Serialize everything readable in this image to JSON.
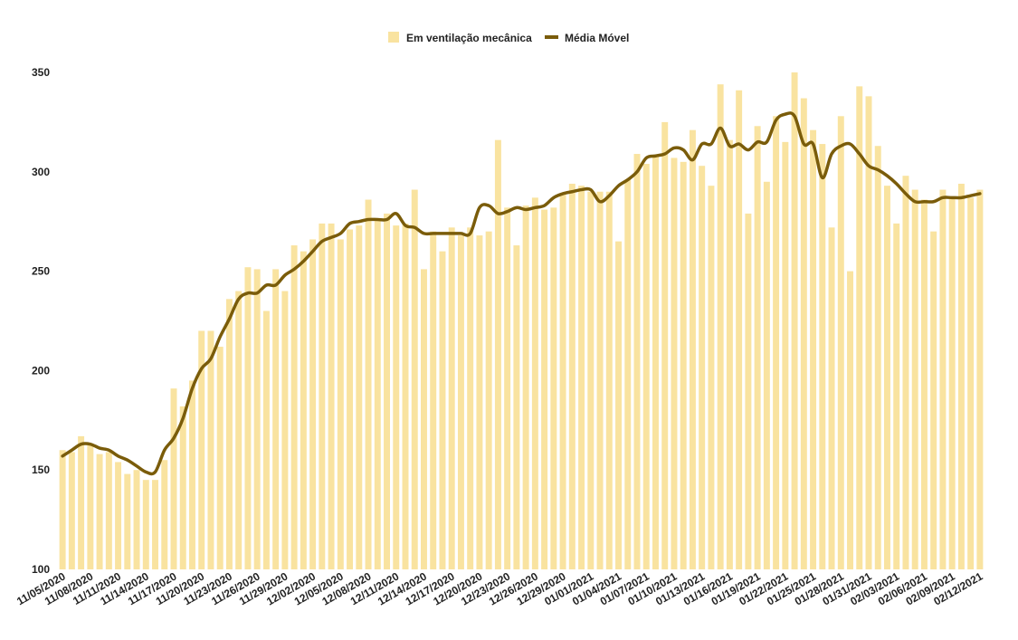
{
  "chart_data": {
    "type": "bar",
    "x": [
      "11/05/2020",
      "11/06/2020",
      "11/07/2020",
      "11/08/2020",
      "11/09/2020",
      "11/10/2020",
      "11/11/2020",
      "11/12/2020",
      "11/13/2020",
      "11/14/2020",
      "11/15/2020",
      "11/16/2020",
      "11/17/2020",
      "11/18/2020",
      "11/19/2020",
      "11/20/2020",
      "11/21/2020",
      "11/22/2020",
      "11/23/2020",
      "11/24/2020",
      "11/25/2020",
      "11/26/2020",
      "11/27/2020",
      "11/28/2020",
      "11/29/2020",
      "11/30/2020",
      "12/01/2020",
      "12/02/2020",
      "12/03/2020",
      "12/04/2020",
      "12/05/2020",
      "12/06/2020",
      "12/07/2020",
      "12/08/2020",
      "12/09/2020",
      "12/10/2020",
      "12/11/2020",
      "12/12/2020",
      "12/13/2020",
      "12/14/2020",
      "12/15/2020",
      "12/16/2020",
      "12/17/2020",
      "12/18/2020",
      "12/19/2020",
      "12/20/2020",
      "12/21/2020",
      "12/22/2020",
      "12/23/2020",
      "12/24/2020",
      "12/25/2020",
      "12/26/2020",
      "12/27/2020",
      "12/28/2020",
      "12/29/2020",
      "12/30/2020",
      "12/31/2020",
      "01/01/2021",
      "01/02/2021",
      "01/03/2021",
      "01/04/2021",
      "01/05/2021",
      "01/06/2021",
      "01/07/2021",
      "01/08/2021",
      "01/09/2021",
      "01/10/2021",
      "01/11/2021",
      "01/12/2021",
      "01/13/2021",
      "01/14/2021",
      "01/15/2021",
      "01/16/2021",
      "01/17/2021",
      "01/18/2021",
      "01/19/2021",
      "01/20/2021",
      "01/21/2021",
      "01/22/2021",
      "01/23/2021",
      "01/24/2021",
      "01/25/2021",
      "01/26/2021",
      "01/27/2021",
      "01/28/2021",
      "01/29/2021",
      "01/30/2021",
      "01/31/2021",
      "02/01/2021",
      "02/02/2021",
      "02/03/2021",
      "02/04/2021",
      "02/05/2021",
      "02/06/2021",
      "02/07/2021",
      "02/08/2021",
      "02/09/2021",
      "02/10/2021",
      "02/11/2021",
      "02/12/2021"
    ],
    "series": [
      {
        "name": "Em ventilação mecânica",
        "kind": "bar",
        "color": "#f9e3a0",
        "values": [
          160,
          159,
          167,
          163,
          158,
          159,
          154,
          148,
          150,
          145,
          145,
          155,
          191,
          182,
          195,
          220,
          220,
          212,
          236,
          240,
          252,
          251,
          230,
          251,
          240,
          263,
          260,
          266,
          274,
          274,
          266,
          271,
          273,
          286,
          276,
          279,
          273,
          274,
          291,
          251,
          270,
          260,
          272,
          268,
          272,
          268,
          270,
          316,
          282,
          263,
          283,
          287,
          281,
          282,
          289,
          294,
          293,
          290,
          290,
          290,
          265,
          296,
          309,
          304,
          308,
          325,
          307,
          305,
          321,
          303,
          293,
          344,
          316,
          341,
          279,
          323,
          295,
          328,
          315,
          350,
          337,
          321,
          314,
          272,
          328,
          250,
          343,
          338,
          313,
          293,
          274,
          298,
          291,
          286,
          270,
          291,
          287,
          294,
          287,
          291
        ]
      },
      {
        "name": "Média Móvel",
        "kind": "line",
        "color": "#7a5c0a",
        "values": [
          157,
          160,
          163,
          163,
          161,
          160,
          157,
          155,
          152,
          149,
          149,
          160,
          166,
          176,
          191,
          201,
          206,
          217,
          226,
          236,
          239,
          239,
          243,
          243,
          248,
          251,
          255,
          260,
          265,
          267,
          269,
          274,
          275,
          276,
          276,
          276,
          279,
          273,
          272,
          269,
          269,
          269,
          269,
          269,
          269,
          282,
          283,
          279,
          280,
          282,
          281,
          282,
          283,
          287,
          289,
          290,
          291,
          291,
          285,
          288,
          293,
          296,
          300,
          307,
          308,
          309,
          312,
          311,
          306,
          314,
          314,
          322,
          313,
          314,
          311,
          315,
          315,
          326,
          329,
          328,
          314,
          314,
          297,
          309,
          313,
          314,
          309,
          303,
          301,
          298,
          294,
          289,
          285,
          285,
          285,
          287,
          287,
          287,
          288,
          289
        ]
      }
    ],
    "x_tick_labels": [
      "11/05/2020",
      "11/08/2020",
      "11/11/2020",
      "11/14/2020",
      "11/17/2020",
      "11/20/2020",
      "11/23/2020",
      "11/26/2020",
      "11/29/2020",
      "12/02/2020",
      "12/05/2020",
      "12/08/2020",
      "12/11/2020",
      "12/14/2020",
      "12/17/2020",
      "12/20/2020",
      "12/23/2020",
      "12/26/2020",
      "12/29/2020",
      "01/01/2021",
      "01/04/2021",
      "01/07/2021",
      "01/10/2021",
      "01/13/2021",
      "01/16/2021",
      "01/19/2021",
      "01/22/2021",
      "01/25/2021",
      "01/28/2021",
      "01/31/2021",
      "02/03/2021",
      "02/06/2021",
      "02/09/2021",
      "02/12/2021"
    ],
    "y_ticks": [
      100,
      150,
      200,
      250,
      300,
      350
    ],
    "ylim": [
      100,
      360
    ],
    "title": "",
    "xlabel": "",
    "ylabel": "",
    "grid": false,
    "legend_position": "top-center"
  }
}
